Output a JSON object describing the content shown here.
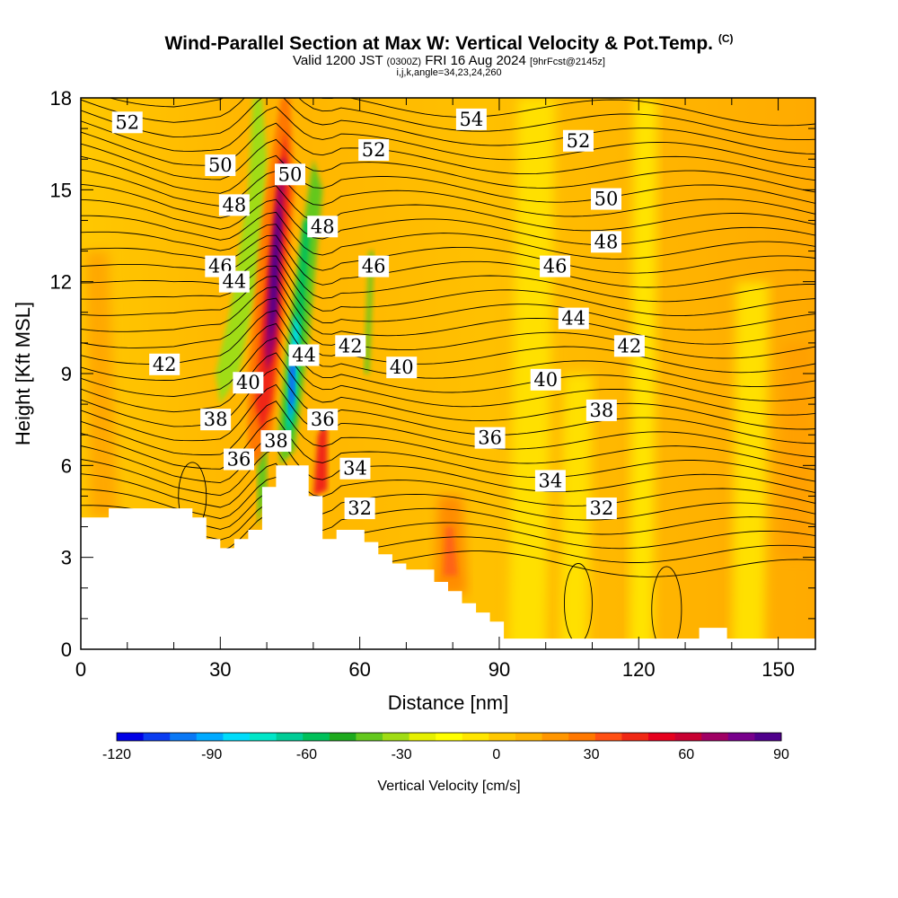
{
  "header": {
    "title": "Wind-Parallel Section at Max W: Vertical Velocity & Pot.Temp.",
    "copyright": "(C)",
    "valid_prefix": "Valid 1200 JST",
    "valid_utc": "(0300Z)",
    "valid_date": "FRI 16 Aug 2024",
    "forecast": "[9hrFcst@2145z]",
    "params": "i,j,k,angle=34,23,24,260"
  },
  "chart_data": {
    "type": "heatmap",
    "xlabel": "Distance [nm]",
    "ylabel": "Height [Kft MSL]",
    "xlim": [
      0,
      158
    ],
    "ylim": [
      0,
      18
    ],
    "x_ticks": [
      "0",
      "30",
      "60",
      "90",
      "120",
      "150"
    ],
    "x_tick_values": [
      0,
      30,
      60,
      90,
      120,
      150
    ],
    "y_ticks": [
      "0",
      "3",
      "6",
      "9",
      "12",
      "15",
      "18"
    ],
    "y_tick_values": [
      0,
      3,
      6,
      9,
      12,
      15,
      18
    ],
    "colorbar": {
      "label": "Vertical Velocity [cm/s]",
      "range": [
        -120,
        90
      ],
      "step": 10,
      "tick_labels": [
        "-120",
        "-90",
        "-60",
        "-30",
        "0",
        "30",
        "60",
        "90"
      ],
      "tick_values": [
        -120,
        -90,
        -60,
        -30,
        0,
        30,
        60,
        90
      ],
      "colors": [
        "#0000e6",
        "#0a3cf0",
        "#0a78f5",
        "#00aaff",
        "#00dcfa",
        "#00e6c8",
        "#00cc96",
        "#00c05a",
        "#1eaa1e",
        "#64c81e",
        "#a0dc14",
        "#e6f000",
        "#ffff00",
        "#ffe600",
        "#ffc800",
        "#ffb400",
        "#ff9600",
        "#ff7800",
        "#ff5014",
        "#f02814",
        "#e6001e",
        "#c80032",
        "#a00064",
        "#78008c",
        "#50008c"
      ]
    },
    "theta_labels": [
      {
        "value": "52",
        "x": 10,
        "y": 17.2
      },
      {
        "value": "50",
        "x": 30,
        "y": 15.8
      },
      {
        "value": "48",
        "x": 52,
        "y": 13.8
      },
      {
        "value": "48",
        "x": 33,
        "y": 14.5
      },
      {
        "value": "46",
        "x": 30,
        "y": 12.5
      },
      {
        "value": "44",
        "x": 33,
        "y": 12
      },
      {
        "value": "42",
        "x": 18,
        "y": 9.3
      },
      {
        "value": "40",
        "x": 36,
        "y": 8.7
      },
      {
        "value": "38",
        "x": 29,
        "y": 7.5
      },
      {
        "value": "36",
        "x": 34,
        "y": 6.2
      },
      {
        "value": "38",
        "x": 42,
        "y": 6.8
      },
      {
        "value": "50",
        "x": 45,
        "y": 15.5
      },
      {
        "value": "44",
        "x": 48,
        "y": 9.6
      },
      {
        "value": "42",
        "x": 58,
        "y": 9.9
      },
      {
        "value": "36",
        "x": 52,
        "y": 7.5
      },
      {
        "value": "34",
        "x": 59,
        "y": 5.9
      },
      {
        "value": "32",
        "x": 60,
        "y": 4.6
      },
      {
        "value": "52",
        "x": 63,
        "y": 16.3
      },
      {
        "value": "46",
        "x": 63,
        "y": 12.5
      },
      {
        "value": "40",
        "x": 69,
        "y": 9.2
      },
      {
        "value": "54",
        "x": 84,
        "y": 17.3
      },
      {
        "value": "36",
        "x": 88,
        "y": 6.9
      },
      {
        "value": "34",
        "x": 101,
        "y": 5.5
      },
      {
        "value": "46",
        "x": 102,
        "y": 12.5
      },
      {
        "value": "44",
        "x": 106,
        "y": 10.8
      },
      {
        "value": "40",
        "x": 100,
        "y": 8.8
      },
      {
        "value": "52",
        "x": 107,
        "y": 16.6
      },
      {
        "value": "50",
        "x": 113,
        "y": 14.7
      },
      {
        "value": "48",
        "x": 113,
        "y": 13.3
      },
      {
        "value": "42",
        "x": 118,
        "y": 9.9
      },
      {
        "value": "38",
        "x": 112,
        "y": 7.8
      },
      {
        "value": "32",
        "x": 112,
        "y": 4.6
      }
    ],
    "terrain": [
      [
        0,
        4.3
      ],
      [
        6,
        4.3
      ],
      [
        6,
        4.6
      ],
      [
        24,
        4.6
      ],
      [
        24,
        4.3
      ],
      [
        27,
        4.3
      ],
      [
        27,
        3.6
      ],
      [
        30,
        3.6
      ],
      [
        30,
        3.3
      ],
      [
        33,
        3.3
      ],
      [
        33,
        3.6
      ],
      [
        36,
        3.6
      ],
      [
        36,
        3.9
      ],
      [
        39,
        3.9
      ],
      [
        39,
        5.3
      ],
      [
        42,
        5.3
      ],
      [
        42,
        6.0
      ],
      [
        49,
        6.0
      ],
      [
        49,
        5.0
      ],
      [
        52,
        5.0
      ],
      [
        52,
        3.6
      ],
      [
        55,
        3.6
      ],
      [
        55,
        3.9
      ],
      [
        61,
        3.9
      ],
      [
        61,
        3.5
      ],
      [
        64,
        3.5
      ],
      [
        64,
        3.1
      ],
      [
        67,
        3.1
      ],
      [
        67,
        2.8
      ],
      [
        70,
        2.8
      ],
      [
        70,
        2.6
      ],
      [
        76,
        2.6
      ],
      [
        76,
        2.2
      ],
      [
        79,
        2.2
      ],
      [
        79,
        1.9
      ],
      [
        82,
        1.9
      ],
      [
        82,
        1.5
      ],
      [
        85,
        1.5
      ],
      [
        85,
        1.2
      ],
      [
        88,
        1.2
      ],
      [
        88,
        0.9
      ],
      [
        91,
        0.9
      ],
      [
        91,
        0.35
      ],
      [
        133,
        0.35
      ],
      [
        133,
        0.7
      ],
      [
        139,
        0.7
      ],
      [
        139,
        0.35
      ],
      [
        158,
        0.35
      ],
      [
        158,
        0
      ]
    ]
  }
}
